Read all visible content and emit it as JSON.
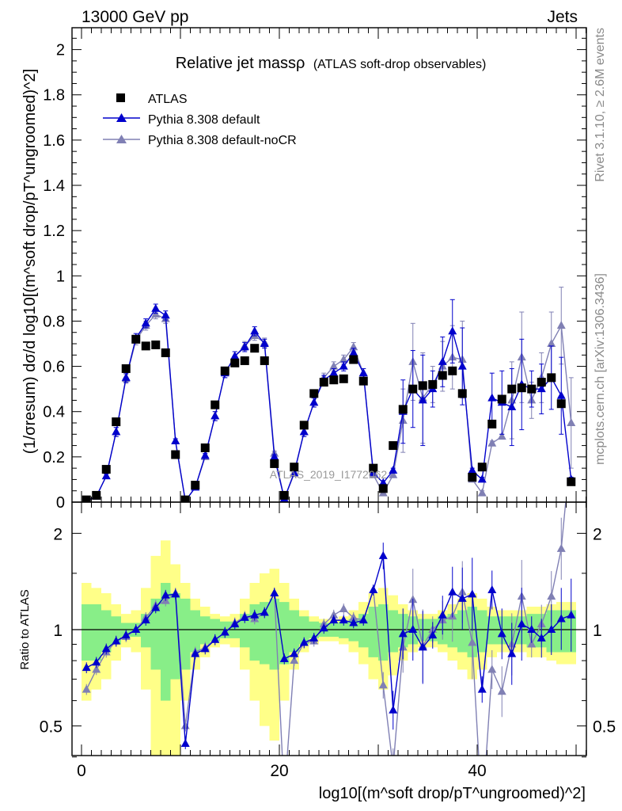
{
  "header": {
    "left": "13000 GeV pp",
    "right": "Jets"
  },
  "side_text": {
    "rivet": "Rivet 3.1.10, ≥ 2.6M events",
    "mcplots": "mcplots.cern.ch [arXiv:1306.3436]"
  },
  "watermark": "ATLAS_2019_I1772062",
  "chart_data": {
    "type": "scatter",
    "title": "Relative jet massρ",
    "subtitle": "(ATLAS soft-drop observables)",
    "xlabel": "log10[(m^soft drop/pT^ungroomed)^2]",
    "ylabel": "(1/σresum) dσ/d log10[(m^soft drop/pT^ungroomed)^2]",
    "ratio_ylabel": "Ratio to ATLAS",
    "xlim": [
      -1,
      51
    ],
    "ylim": [
      0,
      2.1
    ],
    "ratio_ylim": [
      0.35,
      2.3
    ],
    "ratio_scale": "log",
    "xticks": [
      0,
      20,
      40
    ],
    "yticks": [
      0,
      0.2,
      0.4,
      0.6,
      0.8,
      1,
      1.2,
      1.4,
      1.6,
      1.8,
      2
    ],
    "ratio_ticks": [
      0.5,
      1,
      2
    ],
    "legend_position": "top-left",
    "x": [
      0.5,
      1.5,
      2.5,
      3.5,
      4.5,
      5.5,
      6.5,
      7.5,
      8.5,
      9.5,
      10.5,
      11.5,
      12.5,
      13.5,
      14.5,
      15.5,
      16.5,
      17.5,
      18.5,
      19.5,
      20.5,
      21.5,
      22.5,
      23.5,
      24.5,
      25.5,
      26.5,
      27.5,
      28.5,
      29.5,
      30.5,
      31.5,
      32.5,
      33.5,
      34.5,
      35.5,
      36.5,
      37.5,
      38.5,
      39.5,
      40.5,
      41.5,
      42.5,
      43.5,
      44.5,
      45.5,
      46.5,
      47.5,
      48.5,
      49.5
    ],
    "band_inner": [
      0.2,
      0.2,
      0.15,
      0.1,
      0.05,
      0.05,
      0.12,
      0.25,
      0.4,
      0.3,
      0.25,
      0.15,
      0.1,
      0.08,
      0.06,
      0.06,
      0.12,
      0.2,
      0.22,
      0.25,
      0.22,
      0.15,
      0.1,
      0.06,
      0.05,
      0.05,
      0.06,
      0.08,
      0.12,
      0.18,
      0.2,
      0.15,
      0.12,
      0.1,
      0.08,
      0.08,
      0.1,
      0.12,
      0.15,
      0.18,
      0.15,
      0.1,
      0.1,
      0.1,
      0.1,
      0.12,
      0.12,
      0.15,
      0.15,
      0.15
    ],
    "band_outer": [
      0.4,
      0.35,
      0.3,
      0.2,
      0.12,
      0.15,
      0.35,
      0.7,
      0.9,
      0.6,
      0.4,
      0.25,
      0.18,
      0.12,
      0.1,
      0.12,
      0.25,
      0.4,
      0.5,
      0.55,
      0.4,
      0.25,
      0.15,
      0.1,
      0.08,
      0.08,
      0.1,
      0.15,
      0.22,
      0.3,
      0.35,
      0.28,
      0.2,
      0.15,
      0.12,
      0.12,
      0.15,
      0.2,
      0.25,
      0.3,
      0.25,
      0.18,
      0.15,
      0.15,
      0.15,
      0.18,
      0.18,
      0.2,
      0.22,
      0.22
    ],
    "series": [
      {
        "name": "ATLAS",
        "color": "#000000",
        "marker": "square",
        "values": [
          0.01,
          0.03,
          0.145,
          0.355,
          0.59,
          0.72,
          0.69,
          0.695,
          0.66,
          0.21,
          0.01,
          0.075,
          0.24,
          0.43,
          0.58,
          0.615,
          0.625,
          0.68,
          0.625,
          0.17,
          0.03,
          0.155,
          0.34,
          0.48,
          0.53,
          0.54,
          0.545,
          0.63,
          0.535,
          0.15,
          0.06,
          0.25,
          0.41,
          0.5,
          0.515,
          0.52,
          0.56,
          0.58,
          0.48,
          0.11,
          0.155,
          0.345,
          0.455,
          0.5,
          0.505,
          0.5,
          0.53,
          0.55,
          0.435,
          0.09
        ]
      },
      {
        "name": "Pythia 8.308 default",
        "color": "#0000cc",
        "marker": "triangle",
        "values": [
          0.005,
          0.025,
          0.115,
          0.31,
          0.55,
          0.725,
          0.79,
          0.855,
          0.825,
          0.27,
          0.005,
          0.065,
          0.205,
          0.38,
          0.57,
          0.645,
          0.685,
          0.755,
          0.7,
          0.2,
          0.015,
          0.13,
          0.31,
          0.44,
          0.54,
          0.57,
          0.6,
          0.66,
          0.57,
          0.13,
          0.085,
          0.14,
          0.4,
          0.5,
          0.45,
          0.5,
          0.62,
          0.755,
          0.6,
          0.14,
          0.1,
          0.46,
          0.44,
          0.42,
          0.52,
          0.5,
          0.5,
          0.55,
          0.47,
          0.1
        ]
      },
      {
        "name": "Pythia 8.308 default-noCR",
        "color": "#8080b4",
        "marker": "triangle",
        "values": [
          0.005,
          0.025,
          0.115,
          0.31,
          0.545,
          0.715,
          0.78,
          0.83,
          0.81,
          0.27,
          0.005,
          0.065,
          0.2,
          0.38,
          0.57,
          0.645,
          0.69,
          0.735,
          0.705,
          0.215,
          0.015,
          0.125,
          0.31,
          0.44,
          0.55,
          0.6,
          0.63,
          0.685,
          0.57,
          0.12,
          0.04,
          0.12,
          0.36,
          0.62,
          0.46,
          0.52,
          0.6,
          0.64,
          0.63,
          0.1,
          0.04,
          0.26,
          0.29,
          0.45,
          0.64,
          0.45,
          0.55,
          0.7,
          0.78,
          0.35
        ]
      }
    ],
    "ratio_series": [
      {
        "name": "Pythia 8.308 default",
        "values": [
          0.76,
          0.79,
          0.87,
          0.92,
          0.96,
          1.0,
          1.07,
          1.17,
          1.28,
          1.29,
          0.44,
          0.84,
          0.87,
          0.93,
          0.98,
          1.04,
          1.09,
          1.11,
          1.13,
          1.3,
          0.81,
          0.84,
          0.91,
          0.94,
          1.01,
          1.07,
          1.07,
          1.05,
          1.07,
          1.33,
          1.7,
          0.56,
          0.97,
          1.0,
          0.88,
          0.96,
          1.11,
          1.31,
          1.25,
          1.29,
          0.65,
          1.33,
          0.97,
          0.84,
          1.04,
          1.0,
          0.94,
          1.0,
          1.08,
          1.11
        ]
      },
      {
        "name": "Pythia 8.308 default-noCR",
        "values": [
          0.65,
          0.75,
          0.85,
          0.92,
          0.95,
          1.0,
          1.09,
          1.19,
          1.23,
          1.3,
          0.5,
          0.85,
          0.88,
          0.93,
          0.98,
          1.05,
          1.1,
          1.08,
          1.13,
          1.3,
          0.3,
          0.8,
          0.91,
          0.92,
          1.04,
          1.11,
          1.16,
          1.09,
          1.07,
          1.33,
          0.67,
          0.37,
          0.88,
          1.24,
          0.89,
          1.0,
          1.07,
          1.1,
          1.31,
          0.91,
          0.26,
          0.75,
          0.64,
          0.9,
          1.27,
          0.9,
          1.04,
          1.27,
          1.79,
          3.8
        ]
      }
    ]
  }
}
